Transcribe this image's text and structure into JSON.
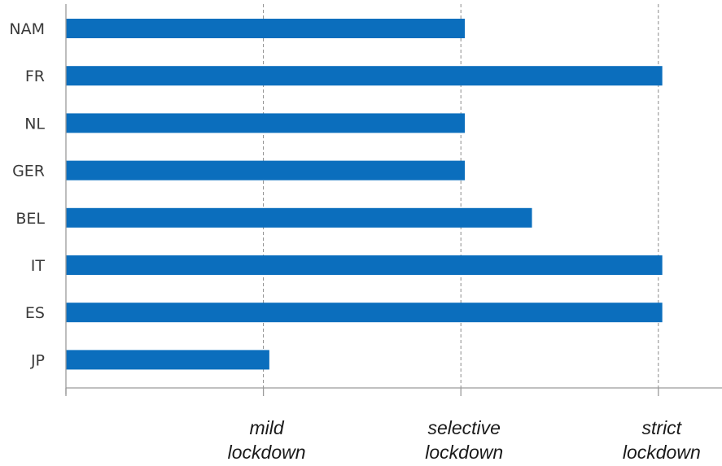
{
  "chart_data": {
    "type": "bar",
    "orientation": "horizontal",
    "categories": [
      "NAM",
      "FR",
      "NL",
      "GER",
      "BEL",
      "IT",
      "ES",
      "JP"
    ],
    "values": [
      2.02,
      3.02,
      2.02,
      2.02,
      2.36,
      3.02,
      3.02,
      1.03
    ],
    "xlim": [
      0,
      3.3
    ],
    "x_ticks": [
      {
        "value": 1,
        "label_lines": [
          "mild",
          "lockdown"
        ]
      },
      {
        "value": 2,
        "label_lines": [
          "selective",
          "lockdown"
        ]
      },
      {
        "value": 3,
        "label_lines": [
          "strict",
          "lockdown"
        ]
      }
    ],
    "grid": "vertical-dashed",
    "bar_color": "#0b6ebd",
    "title": "",
    "xlabel": "",
    "ylabel": ""
  }
}
